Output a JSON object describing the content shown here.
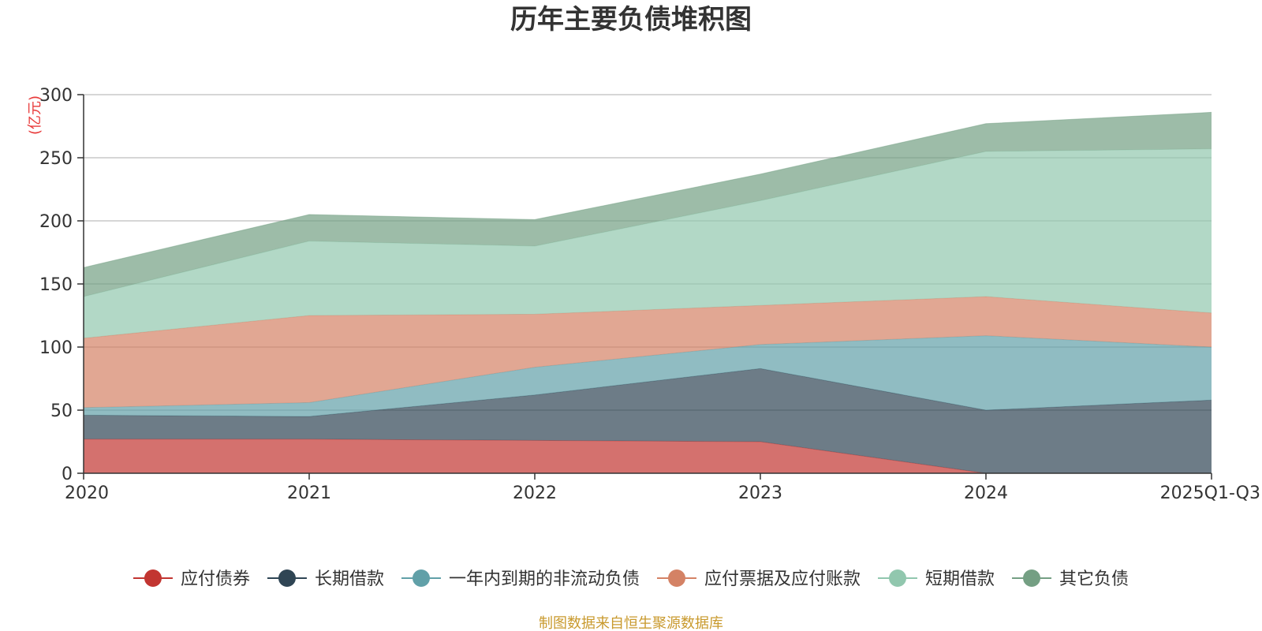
{
  "chart_data": {
    "type": "area",
    "stacked": true,
    "title": "历年主要负债堆积图",
    "unit": "(亿元)",
    "source": "制图数据来自恒生聚源数据库",
    "categories": [
      "2020",
      "2021",
      "2022",
      "2023",
      "2024",
      "2025Q1-Q3"
    ],
    "ylim": [
      0,
      300
    ],
    "yticks": [
      0,
      50,
      100,
      150,
      200,
      250,
      300
    ],
    "grid": true,
    "legend_position": "bottom",
    "series": [
      {
        "name": "应付债券",
        "color": "#c23531",
        "values": [
          27,
          27,
          26,
          25,
          0,
          0
        ]
      },
      {
        "name": "长期借款",
        "color": "#2f4554",
        "values": [
          19,
          18,
          36,
          58,
          50,
          58
        ]
      },
      {
        "name": "一年内到期的非流动负债",
        "color": "#61a0a8",
        "values": [
          6,
          11,
          22,
          19,
          59,
          42
        ]
      },
      {
        "name": "应付票据及应付账款",
        "color": "#d48265",
        "values": [
          55,
          69,
          42,
          31,
          31,
          27
        ]
      },
      {
        "name": "短期借款",
        "color": "#91c7ae",
        "values": [
          33,
          59,
          54,
          83,
          115,
          130
        ]
      },
      {
        "name": "其它负债",
        "color": "#749f83",
        "values": [
          23,
          21,
          21,
          21,
          22,
          29
        ]
      }
    ]
  }
}
